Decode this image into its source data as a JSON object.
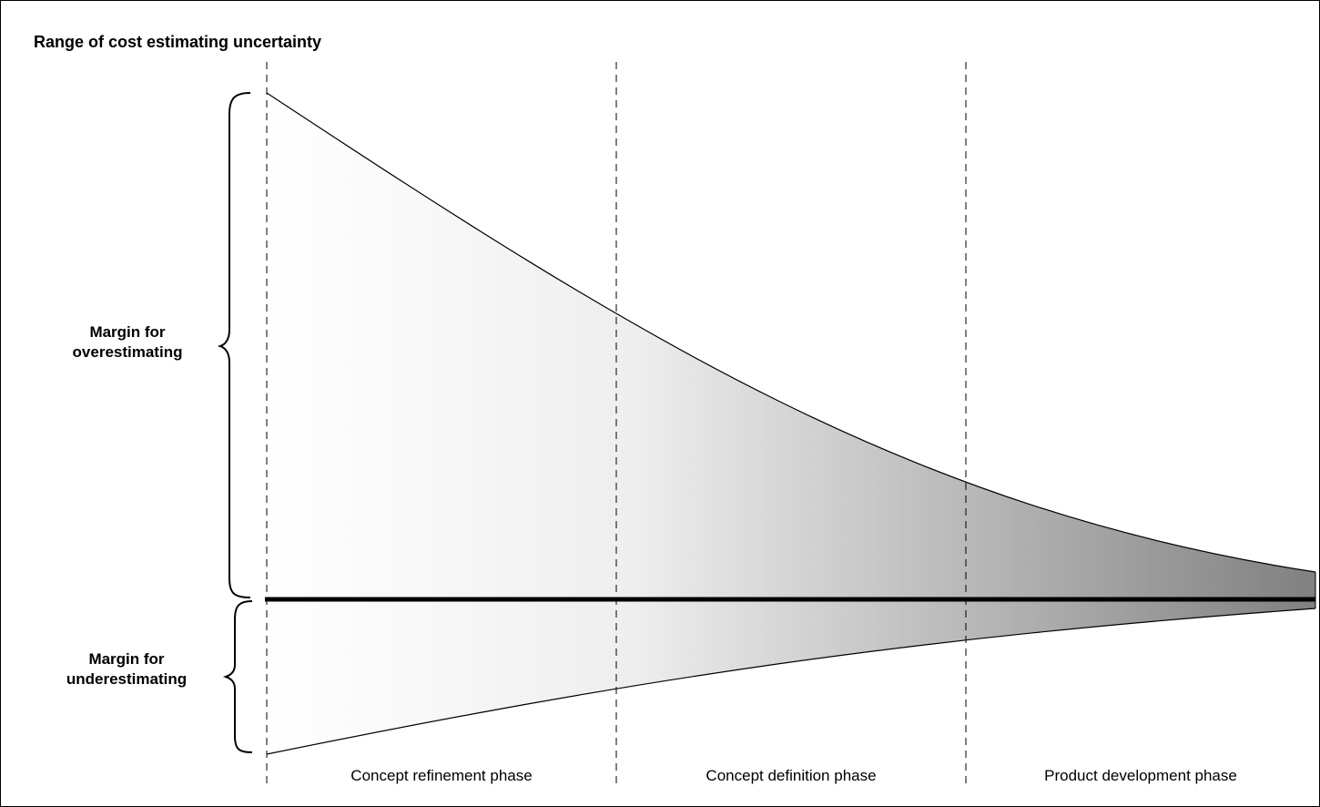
{
  "title": "Range of cost estimating uncertainty",
  "margins": {
    "over_label": "Margin for\noverestimating",
    "under_label": "Margin for\nunderestimating"
  },
  "phases": [
    {
      "label": "Concept refinement phase"
    },
    {
      "label": "Concept definition phase"
    },
    {
      "label": "Product development phase"
    }
  ],
  "colors": {
    "gradient_start": "#ffffff",
    "gradient_end": "#808080",
    "line": "#000000"
  }
}
